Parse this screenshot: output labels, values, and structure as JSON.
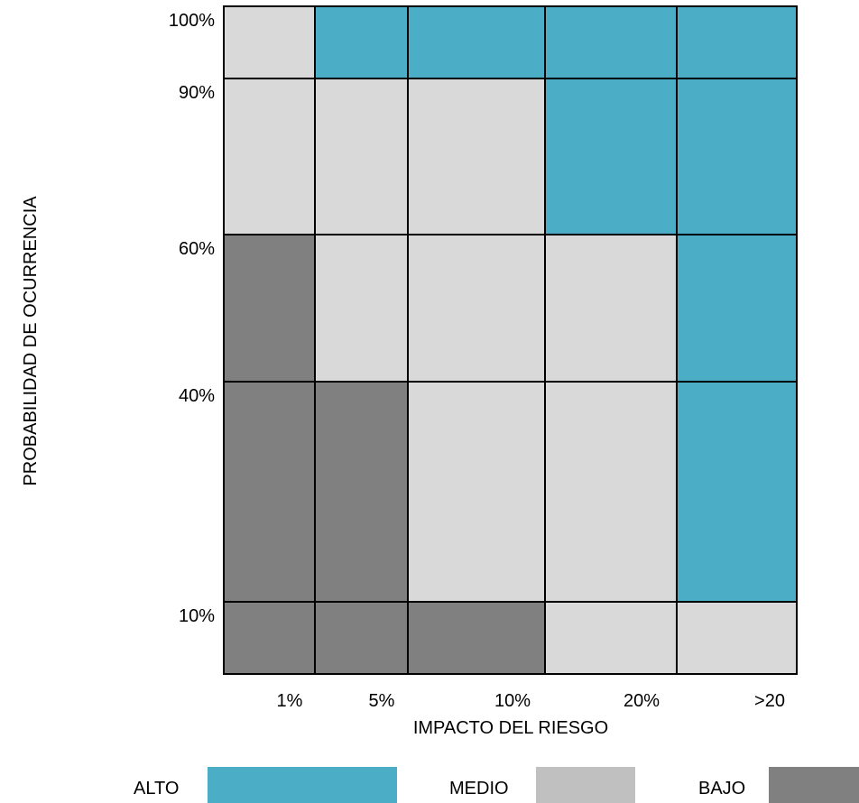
{
  "colors": {
    "alto": "#4badc6",
    "medio": "#d9d9d9",
    "bajo": "#808080",
    "legend_medio": "#c0c0c0",
    "grid": "#000000"
  },
  "chart_data": {
    "type": "heatmap",
    "xlabel": "IMPACTO DEL RIESGO",
    "ylabel": "PROBABILIDAD DE OCURRENCIA",
    "x_categories": [
      "1%",
      "5%",
      "10%",
      "20%",
      ">20"
    ],
    "y_categories": [
      "100%",
      "90%",
      "60%",
      "40%",
      "10%"
    ],
    "cells": [
      [
        "MEDIO",
        "ALTO",
        "ALTO",
        "ALTO",
        "ALTO"
      ],
      [
        "MEDIO",
        "MEDIO",
        "MEDIO",
        "ALTO",
        "ALTO"
      ],
      [
        "BAJO",
        "MEDIO",
        "MEDIO",
        "MEDIO",
        "ALTO"
      ],
      [
        "BAJO",
        "BAJO",
        "MEDIO",
        "MEDIO",
        "ALTO"
      ],
      [
        "BAJO",
        "BAJO",
        "BAJO",
        "MEDIO",
        "MEDIO"
      ]
    ],
    "legend": [
      {
        "label": "ALTO",
        "level": "ALTO"
      },
      {
        "label": "MEDIO",
        "level": "MEDIO"
      },
      {
        "label": "BAJO",
        "level": "BAJO"
      }
    ]
  }
}
